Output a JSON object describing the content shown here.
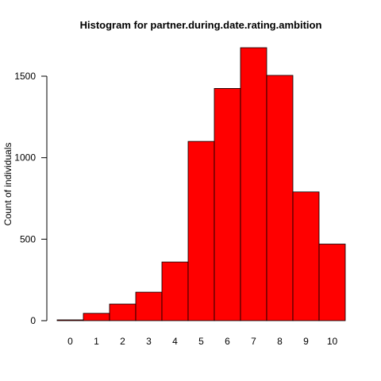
{
  "chart_data": {
    "type": "bar",
    "title": "Histogram for partner.during.date.rating.ambition",
    "xlabel": "",
    "ylabel": "Count of individuals",
    "categories": [
      "0",
      "1",
      "2",
      "3",
      "4",
      "5",
      "6",
      "7",
      "8",
      "9",
      "10"
    ],
    "values": [
      5,
      45,
      102,
      175,
      360,
      1100,
      1425,
      1675,
      1505,
      790,
      470
    ],
    "ylim": [
      0,
      1700
    ],
    "yticks": [
      0,
      500,
      1000,
      1500
    ],
    "bar_color": "#ff0000",
    "bar_edge_color": "#000000",
    "grid": false,
    "legend": "none"
  }
}
